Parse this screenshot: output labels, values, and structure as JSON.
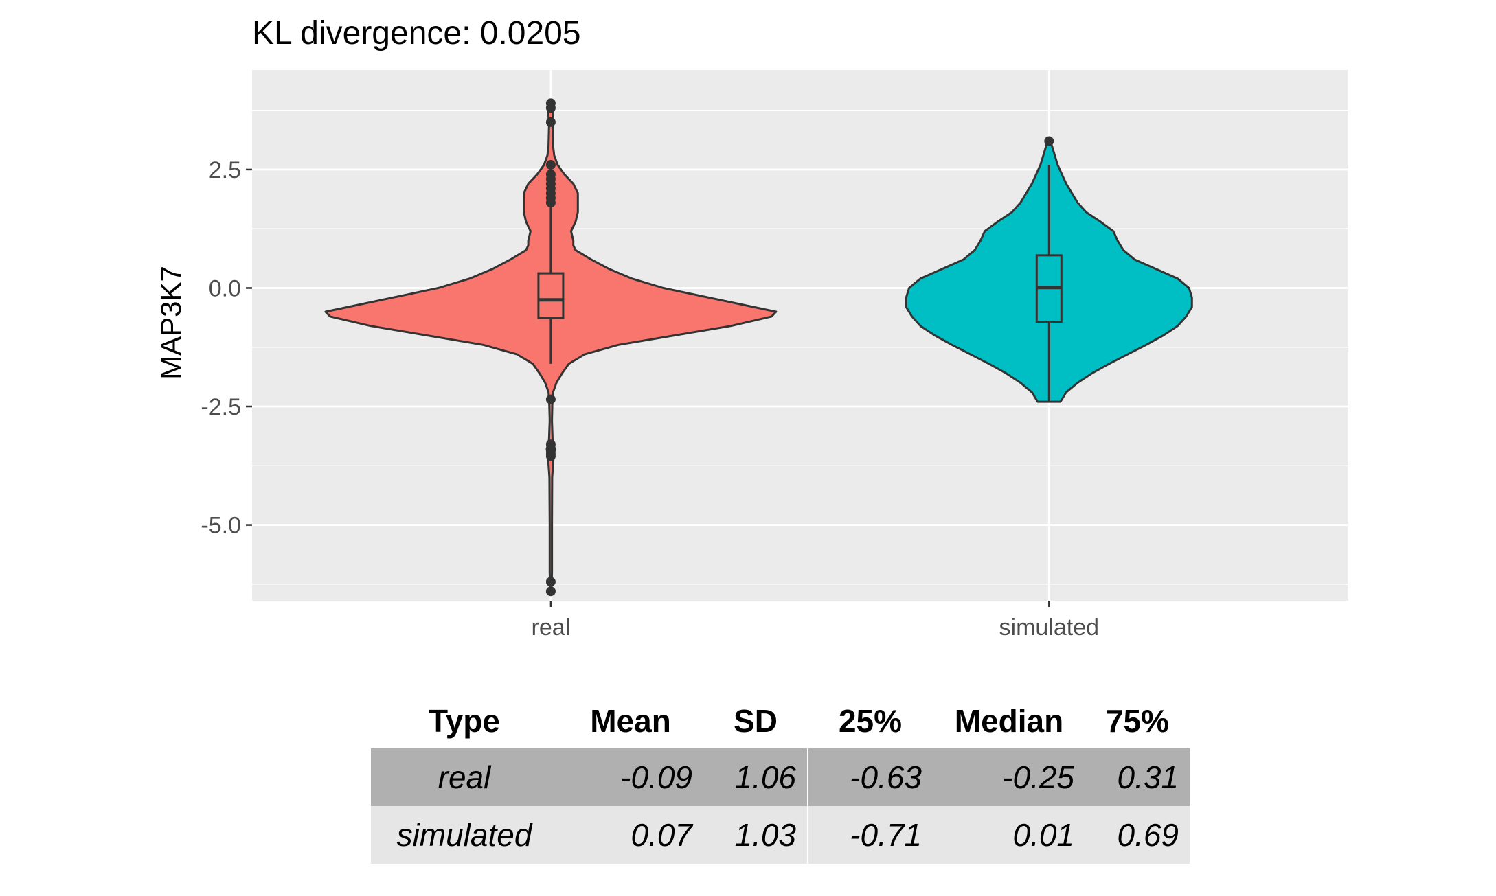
{
  "chart_data": {
    "type": "violin",
    "title": "KL divergence: 0.0205",
    "xlabel": "",
    "ylabel": "MAP3K7",
    "categories": [
      "real",
      "simulated"
    ],
    "ylim": [
      -6.6,
      4.6
    ],
    "yticks": [
      2.5,
      0.0,
      -2.5,
      -5.0
    ],
    "ytick_labels": [
      "2.5",
      "0.0",
      "-2.5",
      "-5.0"
    ],
    "grid": true,
    "legend": "none",
    "colors": {
      "real": "#F8766D",
      "simulated": "#00BFC4",
      "panel": "#EBEBEB",
      "outline": "#333333"
    },
    "series": [
      {
        "name": "real",
        "violin_y": [
          -6.4,
          -6.0,
          -5.0,
          -4.0,
          -3.6,
          -3.4,
          -3.2,
          -2.8,
          -2.4,
          -2.2,
          -2.0,
          -1.8,
          -1.6,
          -1.4,
          -1.2,
          -1.0,
          -0.8,
          -0.6,
          -0.5,
          -0.4,
          -0.2,
          0.0,
          0.2,
          0.4,
          0.6,
          0.8,
          0.9,
          1.0,
          1.2,
          1.4,
          1.6,
          1.8,
          2.0,
          2.2,
          2.4,
          2.6,
          2.8,
          3.0,
          3.4,
          3.8,
          3.9
        ],
        "violin_density": [
          0.003,
          0.005,
          0.005,
          0.006,
          0.012,
          0.018,
          0.008,
          0.005,
          0.007,
          0.01,
          0.025,
          0.05,
          0.08,
          0.15,
          0.3,
          0.55,
          0.8,
          0.98,
          1.0,
          0.9,
          0.7,
          0.5,
          0.36,
          0.26,
          0.18,
          0.11,
          0.1,
          0.1,
          0.09,
          0.11,
          0.12,
          0.12,
          0.12,
          0.1,
          0.06,
          0.03,
          0.015,
          0.01,
          0.008,
          0.012,
          0.008
        ],
        "box": {
          "q1": -0.63,
          "median": -0.25,
          "q3": 0.31,
          "whisker_low": -1.6,
          "whisker_high": 1.7
        },
        "outliers": [
          2.6,
          2.4,
          2.3,
          2.2,
          2.1,
          2.0,
          1.9,
          1.8,
          3.5,
          3.8,
          3.9,
          -2.35,
          -3.3,
          -3.4,
          -3.5,
          -3.55,
          -6.2,
          -6.4
        ]
      },
      {
        "name": "simulated",
        "violin_y": [
          -2.4,
          -2.2,
          -2.0,
          -1.8,
          -1.6,
          -1.4,
          -1.2,
          -1.0,
          -0.8,
          -0.6,
          -0.4,
          -0.2,
          0.0,
          0.2,
          0.4,
          0.6,
          0.8,
          1.0,
          1.2,
          1.4,
          1.6,
          1.8,
          2.0,
          2.2,
          2.4,
          2.6,
          2.8,
          3.0,
          3.1
        ],
        "violin_density": [
          0.08,
          0.12,
          0.2,
          0.3,
          0.42,
          0.55,
          0.68,
          0.8,
          0.9,
          0.96,
          1.0,
          1.0,
          0.98,
          0.9,
          0.75,
          0.6,
          0.52,
          0.48,
          0.45,
          0.36,
          0.26,
          0.2,
          0.16,
          0.12,
          0.09,
          0.06,
          0.04,
          0.02,
          0.01
        ],
        "box": {
          "q1": -0.71,
          "median": 0.01,
          "q3": 0.69,
          "whisker_low": -2.4,
          "whisker_high": 2.6
        },
        "outliers": [
          3.1
        ]
      }
    ]
  },
  "table": {
    "headers": [
      "Type",
      "Mean",
      "SD",
      "25%",
      "Median",
      "75%"
    ],
    "rows": [
      [
        "real",
        "-0.09",
        "1.06",
        "-0.63",
        "-0.25",
        "0.31"
      ],
      [
        "simulated",
        "0.07",
        "1.03",
        "-0.71",
        "0.01",
        "0.69"
      ]
    ]
  }
}
